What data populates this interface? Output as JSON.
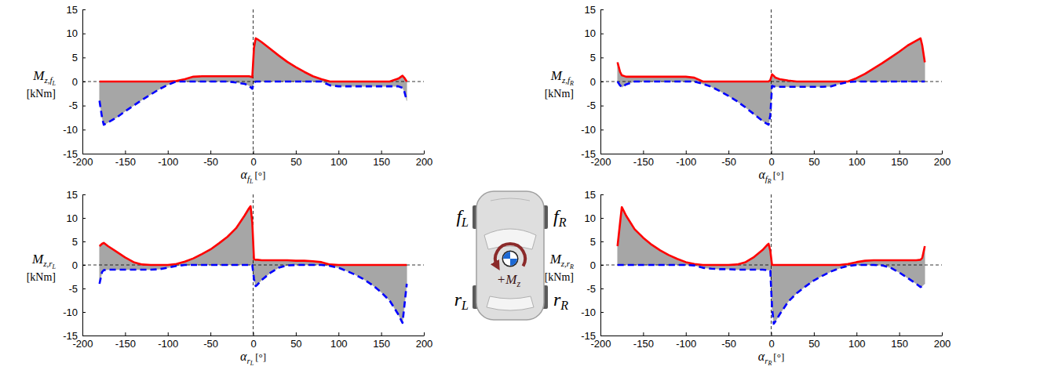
{
  "chart_data": [
    {
      "type": "line",
      "ylabel": "M",
      "ylabel_sub": "z,f",
      "ylabel_subsub": "L",
      "yunit": "[kNm]",
      "xlabel": "α",
      "xlabel_sub": "f",
      "xlabel_subsub": "L",
      "xunit": "[°]",
      "x": [
        -180,
        -177,
        -175,
        -170,
        -160,
        -150,
        -140,
        -130,
        -120,
        -110,
        -100,
        -90,
        -80,
        -70,
        -60,
        -50,
        -40,
        -30,
        -20,
        -10,
        -5,
        -3,
        -1,
        1,
        3,
        5,
        10,
        20,
        30,
        40,
        50,
        60,
        70,
        80,
        90,
        100,
        110,
        120,
        130,
        140,
        150,
        160,
        170,
        175,
        177,
        180
      ],
      "xlim": [
        -200,
        200
      ],
      "xticks": [
        -200,
        -150,
        -100,
        -50,
        0,
        50,
        100,
        150,
        200
      ],
      "ylim": [
        -15,
        15
      ],
      "yticks": [
        -15,
        -10,
        -5,
        0,
        5,
        10,
        15
      ],
      "color": "#a6a6a6",
      "series": [
        {
          "color": "#ff0000",
          "line_style": "solid",
          "values": [
            0,
            0,
            0,
            0,
            0,
            0,
            0,
            0,
            0,
            0,
            0,
            0.1,
            0.5,
            1,
            1.1,
            1.1,
            1.1,
            1.1,
            1.1,
            1.1,
            1.1,
            1,
            0.9,
            7,
            9,
            8.8,
            8.2,
            6.8,
            5.4,
            4.1,
            3,
            2,
            1.1,
            0.5,
            0,
            0,
            0,
            0,
            0,
            0,
            0,
            0,
            0.6,
            1.2,
            0.8,
            0
          ]
        },
        {
          "color": "#0000ff",
          "line_style": "dashed",
          "values": [
            -4,
            -7.5,
            -9,
            -8.5,
            -7.5,
            -6.2,
            -5,
            -3.8,
            -2.7,
            -1.6,
            -0.7,
            0,
            0,
            0,
            0,
            0,
            0,
            0,
            -0.2,
            -0.5,
            -0.8,
            -1.2,
            -1.5,
            -0.3,
            0,
            0,
            0,
            0,
            0,
            0,
            0,
            0,
            0,
            0,
            -0.8,
            -1,
            -1,
            -1,
            -1,
            -1,
            -1,
            -1,
            -1,
            -1.3,
            -2,
            -4
          ]
        }
      ]
    },
    {
      "type": "line",
      "ylabel": "M",
      "ylabel_sub": "z,f",
      "ylabel_subsub": "R",
      "yunit": "[kNm]",
      "xlabel": "α",
      "xlabel_sub": "f",
      "xlabel_subsub": "R",
      "xunit": "[°]",
      "x": [
        -180,
        -177,
        -175,
        -170,
        -160,
        -150,
        -140,
        -130,
        -120,
        -110,
        -100,
        -90,
        -80,
        -70,
        -60,
        -50,
        -40,
        -30,
        -20,
        -10,
        -5,
        -3,
        -1,
        1,
        3,
        5,
        10,
        20,
        30,
        40,
        50,
        60,
        70,
        80,
        90,
        100,
        110,
        120,
        130,
        140,
        150,
        160,
        170,
        175,
        177,
        180
      ],
      "xlim": [
        -200,
        200
      ],
      "xticks": [
        -200,
        -150,
        -100,
        -50,
        0,
        50,
        100,
        150,
        200
      ],
      "ylim": [
        -15,
        15
      ],
      "yticks": [
        -15,
        -10,
        -5,
        0,
        5,
        10,
        15
      ],
      "color": "#a6a6a6",
      "series": [
        {
          "color": "#ff0000",
          "line_style": "solid",
          "values": [
            4,
            2,
            1.3,
            1,
            1,
            1,
            1,
            1,
            1,
            1,
            1,
            0.8,
            0,
            0,
            0,
            0,
            0,
            0,
            0,
            0,
            0,
            0,
            0.3,
            1.5,
            1.2,
            0.8,
            0.5,
            0.2,
            0,
            0,
            0,
            0,
            0,
            0,
            0,
            0.7,
            1.6,
            2.7,
            3.8,
            5,
            6.2,
            7.5,
            8.5,
            9,
            7.5,
            4
          ]
        },
        {
          "color": "#0000ff",
          "line_style": "dashed",
          "values": [
            0,
            -0.8,
            -1.2,
            -0.6,
            0,
            0,
            0,
            0,
            0,
            0,
            0,
            0,
            -0.5,
            -1.1,
            -2,
            -3,
            -4.1,
            -5.4,
            -6.8,
            -8.2,
            -8.8,
            -9,
            -7,
            -0.9,
            -1,
            -1.1,
            -1.1,
            -1.1,
            -1.1,
            -1.1,
            -1.1,
            -1.1,
            -1,
            -0.5,
            -0.1,
            0,
            0,
            0,
            0,
            0,
            0,
            0,
            0,
            0,
            0,
            0
          ]
        }
      ]
    },
    {
      "type": "line",
      "ylabel": "M",
      "ylabel_sub": "z,r",
      "ylabel_subsub": "L",
      "yunit": "[kNm]",
      "xlabel": "α",
      "xlabel_sub": "r",
      "xlabel_subsub": "L",
      "xunit": "[°]",
      "x": [
        -180,
        -177,
        -175,
        -170,
        -160,
        -150,
        -140,
        -130,
        -120,
        -110,
        -100,
        -90,
        -80,
        -70,
        -60,
        -50,
        -40,
        -30,
        -20,
        -10,
        -5,
        -3,
        -1,
        1,
        3,
        5,
        10,
        20,
        30,
        40,
        50,
        60,
        70,
        80,
        90,
        100,
        110,
        120,
        130,
        140,
        150,
        160,
        170,
        175,
        177,
        180
      ],
      "xlim": [
        -200,
        200
      ],
      "xticks": [
        -200,
        -150,
        -100,
        -50,
        0,
        50,
        100,
        150,
        200
      ],
      "ylim": [
        -15,
        15
      ],
      "yticks": [
        -15,
        -10,
        -5,
        0,
        5,
        10,
        15
      ],
      "color": "#a6a6a6",
      "series": [
        {
          "color": "#ff0000",
          "line_style": "solid",
          "values": [
            4,
            4.5,
            4.7,
            4,
            2.8,
            1.6,
            0.6,
            0.1,
            0,
            0,
            0,
            0.2,
            0.7,
            1.4,
            2.3,
            3.3,
            4.6,
            6,
            7.8,
            10.5,
            12,
            12.5,
            9,
            1.2,
            1.1,
            1.1,
            1,
            1,
            1,
            1,
            0.9,
            0.9,
            0.8,
            0.6,
            0.1,
            0,
            0,
            0,
            0,
            0,
            0,
            0,
            0,
            0,
            0,
            0
          ]
        },
        {
          "color": "#0000ff",
          "line_style": "dashed",
          "values": [
            -4,
            -1.5,
            -1.1,
            -1,
            -1,
            -1,
            -1,
            -1,
            -1,
            -0.9,
            -0.6,
            -0.2,
            0,
            0,
            0,
            0,
            0,
            0,
            0,
            0,
            0,
            0,
            0,
            -3,
            -4.5,
            -4.2,
            -3.2,
            -1.7,
            -0.6,
            -0.1,
            0,
            0,
            0,
            0,
            -0.2,
            -0.6,
            -1.3,
            -2.1,
            -3.1,
            -4.3,
            -5.8,
            -7.6,
            -10.5,
            -12.3,
            -9,
            -4
          ]
        }
      ]
    },
    {
      "type": "line",
      "ylabel": "M",
      "ylabel_sub": "z,r",
      "ylabel_subsub": "R",
      "yunit": "[kNm]",
      "xlabel": "α",
      "xlabel_sub": "r",
      "xlabel_subsub": "R",
      "xunit": "[°]",
      "x": [
        -180,
        -177,
        -175,
        -170,
        -160,
        -150,
        -140,
        -130,
        -120,
        -110,
        -100,
        -90,
        -80,
        -70,
        -60,
        -50,
        -40,
        -30,
        -20,
        -10,
        -5,
        -3,
        -1,
        1,
        3,
        5,
        10,
        20,
        30,
        40,
        50,
        60,
        70,
        80,
        90,
        100,
        110,
        120,
        130,
        140,
        150,
        160,
        170,
        175,
        177,
        180
      ],
      "xlim": [
        -200,
        200
      ],
      "xticks": [
        -200,
        -150,
        -100,
        -50,
        0,
        50,
        100,
        150,
        200
      ],
      "ylim": [
        -15,
        15
      ],
      "yticks": [
        -15,
        -10,
        -5,
        0,
        5,
        10,
        15
      ],
      "color": "#a6a6a6",
      "series": [
        {
          "color": "#ff0000",
          "line_style": "solid",
          "values": [
            4,
            9,
            12.3,
            10.5,
            7.6,
            5.8,
            4.3,
            3.1,
            2.1,
            1.3,
            0.6,
            0.2,
            0,
            0,
            0,
            0,
            0.1,
            0.6,
            1.7,
            3.2,
            4.2,
            4.5,
            3,
            0,
            0,
            0,
            0,
            0,
            0,
            0,
            0,
            0,
            0,
            0,
            0.2,
            0.6,
            0.9,
            1,
            1,
            1,
            1,
            1,
            1,
            1.1,
            1.5,
            4
          ]
        },
        {
          "color": "#0000ff",
          "line_style": "dashed",
          "values": [
            0,
            0,
            0,
            0,
            0,
            0,
            0,
            0,
            0,
            0,
            0,
            -0.1,
            -0.6,
            -0.8,
            -0.9,
            -0.9,
            -1,
            -1,
            -1,
            -1,
            -1.1,
            -1.1,
            -1.2,
            -9,
            -12.5,
            -12,
            -10.5,
            -7.8,
            -6,
            -4.6,
            -3.3,
            -2.3,
            -1.4,
            -0.7,
            -0.2,
            0,
            0,
            0,
            -0.1,
            -0.6,
            -1.6,
            -2.8,
            -4,
            -4.7,
            -4.5,
            -4
          ]
        }
      ]
    }
  ],
  "car": {
    "wheels": [
      {
        "text": "f",
        "sub": "L"
      },
      {
        "text": "f",
        "sub": "R"
      },
      {
        "text": "r",
        "sub": "L"
      },
      {
        "text": "r",
        "sub": "R"
      }
    ],
    "moment": {
      "text": "+M",
      "sub": "z"
    }
  }
}
